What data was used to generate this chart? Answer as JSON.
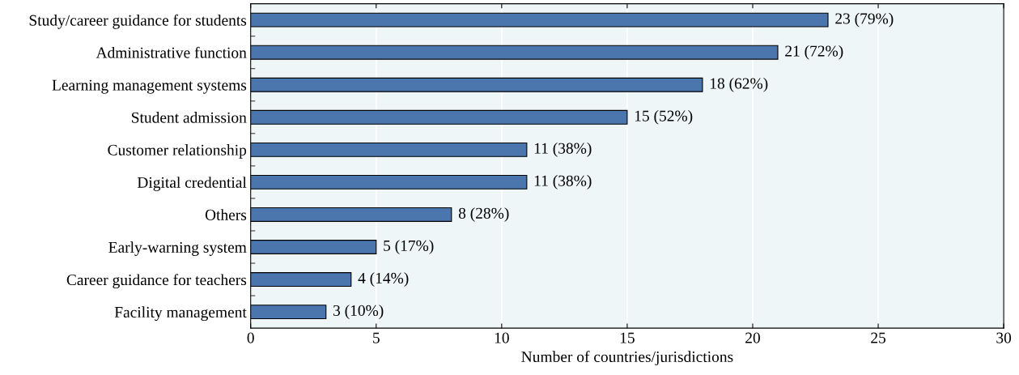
{
  "chart_data": {
    "type": "bar",
    "orientation": "horizontal",
    "xlabel": "Number of countries/jurisdictions",
    "categories": [
      "Study/career guidance for students",
      "Administrative function",
      "Learning management systems",
      "Student admission",
      "Customer relationship",
      "Digital credential",
      "Others",
      "Early-warning system",
      "Career guidance for teachers",
      "Facility management"
    ],
    "values": [
      23,
      21,
      18,
      15,
      11,
      11,
      8,
      5,
      4,
      3
    ],
    "value_labels": [
      "23 (79%)",
      "21 (72%)",
      "18 (62%)",
      "15 (52%)",
      "11 (38%)",
      "11 (38%)",
      "8 (28%)",
      "5 (17%)",
      "4 (14%)",
      "3 (10%)"
    ],
    "color": "#4a76ad",
    "xlim": [
      0,
      30
    ],
    "xticks": [
      0,
      5,
      10,
      15,
      20,
      25,
      30
    ],
    "grid": "x",
    "legend": false
  }
}
